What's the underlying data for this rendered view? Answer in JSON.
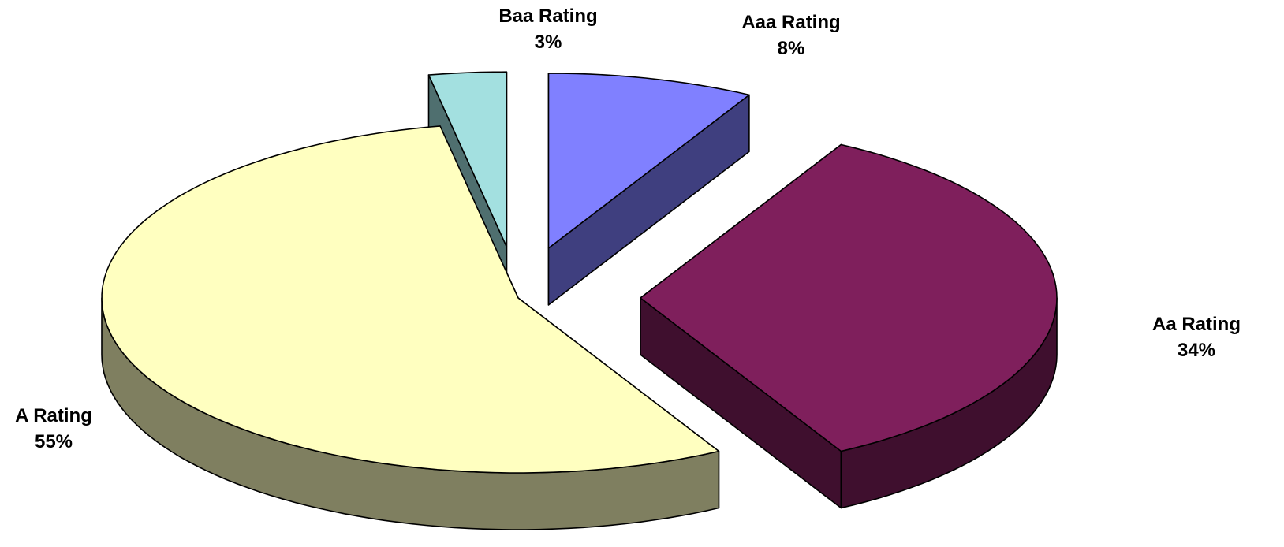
{
  "chart_data": {
    "type": "pie",
    "title": "",
    "slices": [
      {
        "label": "Aaa Rating",
        "percent_text": "8%",
        "value": 8,
        "color": "#8080FF",
        "side_color": "#3F3F7F"
      },
      {
        "label": "Aa Rating",
        "percent_text": "34%",
        "value": 34,
        "color": "#7F1F5C",
        "side_color": "#3F0F2E"
      },
      {
        "label": "A Rating",
        "percent_text": "55%",
        "value": 55,
        "color": "#FFFFC0",
        "side_color": "#7F7F60"
      },
      {
        "label": "Baa Rating",
        "percent_text": "3%",
        "value": 3,
        "color": "#A3E0E0",
        "side_color": "#4F6F6F"
      }
    ],
    "style": "3d-exploded",
    "legend": "none"
  }
}
